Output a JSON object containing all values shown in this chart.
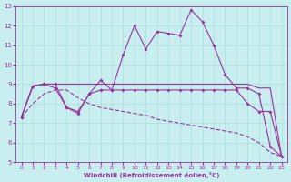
{
  "xlabel": "Windchill (Refroidissement éolien,°C)",
  "bg_color": "#c8eef0",
  "line_color": "#993399",
  "grid_color": "#aadddd",
  "xlim": [
    -0.5,
    23.5
  ],
  "ylim": [
    5,
    13
  ],
  "xticks": [
    0,
    1,
    2,
    3,
    4,
    5,
    6,
    7,
    8,
    9,
    10,
    11,
    12,
    13,
    14,
    15,
    16,
    17,
    18,
    19,
    20,
    21,
    22,
    23
  ],
  "yticks": [
    5,
    6,
    7,
    8,
    9,
    10,
    11,
    12,
    13
  ],
  "line_spiky_x": [
    0,
    1,
    2,
    3,
    4,
    5,
    6,
    7,
    8,
    9,
    10,
    11,
    12,
    13,
    14,
    15,
    16,
    17,
    18,
    19,
    20,
    21,
    22,
    23
  ],
  "line_spiky_y": [
    7.3,
    8.9,
    9.0,
    8.8,
    7.8,
    7.5,
    8.5,
    9.2,
    8.7,
    10.5,
    12.0,
    10.8,
    11.7,
    11.6,
    11.5,
    12.8,
    12.2,
    11.0,
    9.5,
    8.8,
    8.8,
    8.5,
    5.8,
    5.3
  ],
  "line_flat_x": [
    0,
    1,
    2,
    3,
    4,
    5,
    6,
    7,
    8,
    9,
    10,
    11,
    12,
    13,
    14,
    15,
    16,
    17,
    18,
    19,
    20,
    21,
    22,
    23
  ],
  "line_flat_y": [
    7.3,
    8.9,
    9.0,
    9.0,
    9.0,
    9.0,
    9.0,
    9.0,
    9.0,
    9.0,
    9.0,
    9.0,
    9.0,
    9.0,
    9.0,
    9.0,
    9.0,
    9.0,
    9.0,
    9.0,
    9.0,
    8.8,
    8.8,
    5.3
  ],
  "line_mid_x": [
    0,
    1,
    2,
    3,
    4,
    5,
    6,
    7,
    8,
    9,
    10,
    11,
    12,
    13,
    14,
    15,
    16,
    17,
    18,
    19,
    20,
    21,
    22,
    23
  ],
  "line_mid_y": [
    7.3,
    8.9,
    9.0,
    9.0,
    7.8,
    7.6,
    8.5,
    8.7,
    8.7,
    8.7,
    8.7,
    8.7,
    8.7,
    8.7,
    8.7,
    8.7,
    8.7,
    8.7,
    8.7,
    8.7,
    8.0,
    7.6,
    7.6,
    5.3
  ],
  "line_low_x": [
    0,
    1,
    2,
    3,
    4,
    5,
    6,
    7,
    8,
    9,
    10,
    11,
    12,
    13,
    14,
    15,
    16,
    17,
    18,
    19,
    20,
    21,
    22,
    23
  ],
  "line_low_y": [
    7.3,
    8.0,
    8.5,
    8.7,
    8.7,
    8.3,
    8.0,
    7.8,
    7.7,
    7.6,
    7.5,
    7.4,
    7.2,
    7.1,
    7.0,
    6.9,
    6.8,
    6.7,
    6.6,
    6.5,
    6.3,
    6.0,
    5.5,
    5.3
  ]
}
